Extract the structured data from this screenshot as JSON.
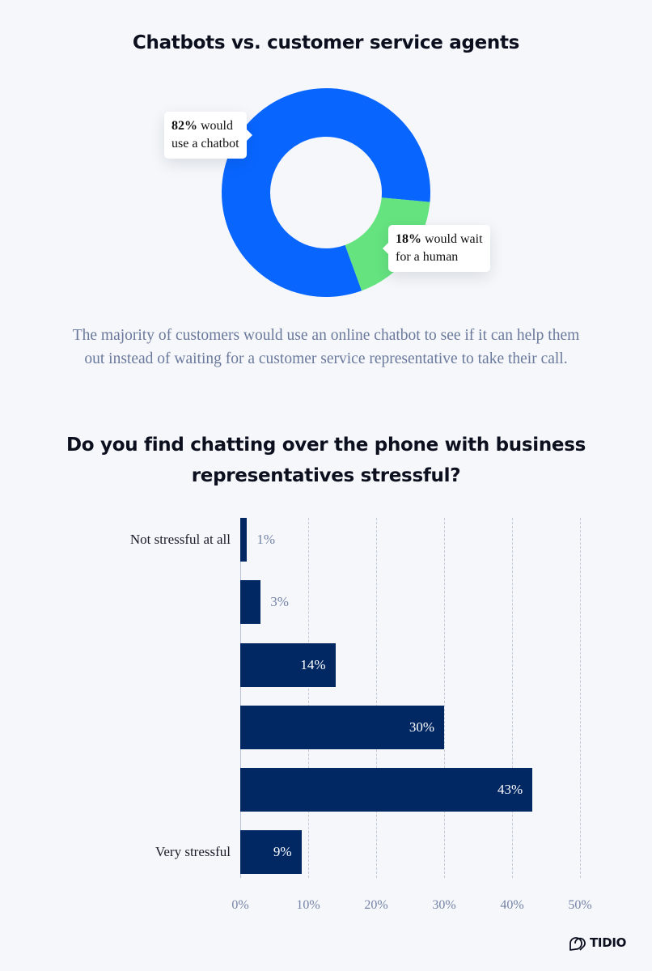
{
  "section1": {
    "title": "Chatbots vs. customer service agents",
    "callouts": [
      {
        "bold": "82%",
        "rest_line1": " would",
        "line2": "use a chatbot"
      },
      {
        "bold": "18%",
        "rest_line1": " would wait",
        "line2": "for a human"
      }
    ],
    "description_line1": "The majority of customers would use an online chatbot to see if it can help them",
    "description_line2": "out instead of waiting for a customer service representative to take their call."
  },
  "section2": {
    "title_line1": "Do you find chatting over the phone with business",
    "title_line2": "representatives stressful?"
  },
  "brand": {
    "name": "TIDIO"
  },
  "colors": {
    "chatbot_blue": "#0866ff",
    "human_green": "#65e37f",
    "bar_navy": "#022864",
    "muted_text": "#6b7a9c",
    "background": "#f5f7fa"
  },
  "chart_data": [
    {
      "type": "pie",
      "title": "Chatbots vs. customer service agents",
      "donut": true,
      "categories": [
        "Would use a chatbot",
        "Would wait for a human"
      ],
      "values": [
        82,
        18
      ],
      "labels": [
        "82% would use a chatbot",
        "18% would wait for a human"
      ],
      "colors": [
        "#0866ff",
        "#65e37f"
      ]
    },
    {
      "type": "bar",
      "orientation": "horizontal",
      "title": "Do you find chatting over the phone with business representatives stressful?",
      "categories": [
        "Not stressful at all",
        "",
        "",
        "",
        "",
        "Very stressful"
      ],
      "values": [
        1,
        3,
        14,
        30,
        43,
        9
      ],
      "value_labels": [
        "1%",
        "3%",
        "14%",
        "30%",
        "43%",
        "9%"
      ],
      "xlabel": "",
      "ylabel": "",
      "xlim": [
        0,
        50
      ],
      "xticks": [
        "0%",
        "10%",
        "20%",
        "30%",
        "40%",
        "50%"
      ],
      "grid": "vertical dashed",
      "color": "#022864"
    }
  ]
}
